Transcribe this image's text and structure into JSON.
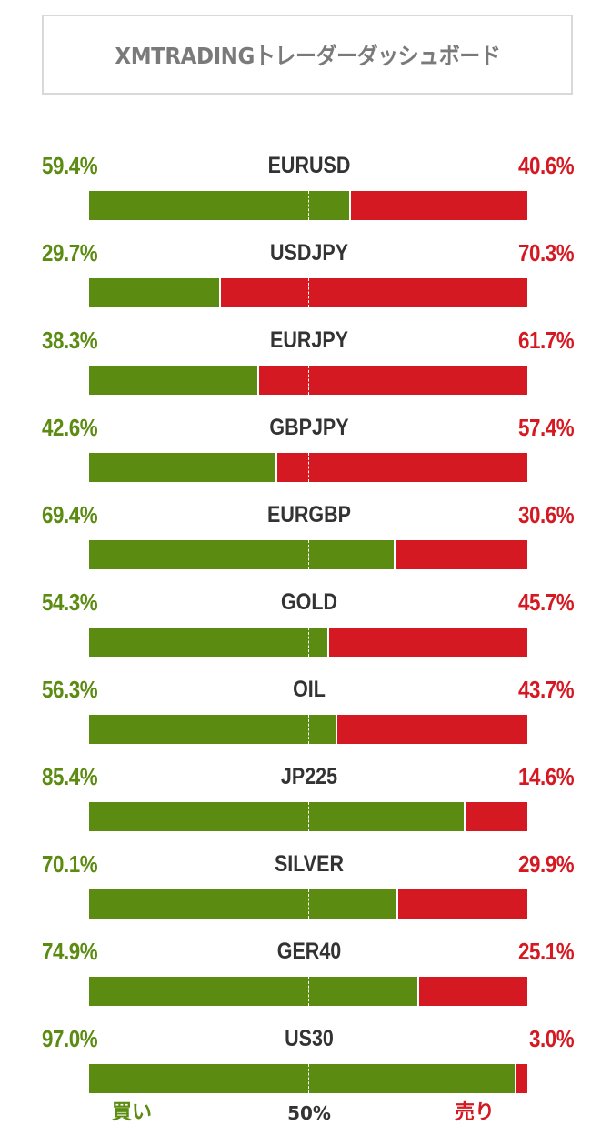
{
  "header": {
    "title": "XMTRADINGトレーダーダッシュボード"
  },
  "colors": {
    "buy": "#5b8c11",
    "sell": "#d51922",
    "text": "#333333",
    "title": "#7a7a7a"
  },
  "chart_data": {
    "type": "bar",
    "orientation": "horizontal-stacked",
    "categories": [
      "EURUSD",
      "USDJPY",
      "EURJPY",
      "GBPJPY",
      "EURGBP",
      "GOLD",
      "OIL",
      "JP225",
      "SILVER",
      "GER40",
      "US30"
    ],
    "series": [
      {
        "name": "買い",
        "values": [
          59.4,
          29.7,
          38.3,
          42.6,
          69.4,
          54.3,
          56.3,
          85.4,
          70.1,
          74.9,
          97.0
        ]
      },
      {
        "name": "売り",
        "values": [
          40.6,
          70.3,
          61.7,
          57.4,
          30.6,
          45.7,
          43.7,
          14.6,
          29.9,
          25.1,
          3.0
        ]
      }
    ],
    "labels": {
      "buy": [
        "59.4%",
        "29.7%",
        "38.3%",
        "42.6%",
        "69.4%",
        "54.3%",
        "56.3%",
        "85.4%",
        "70.1%",
        "74.9%",
        "97.0%"
      ],
      "sell": [
        "40.6%",
        "70.3%",
        "61.7%",
        "57.4%",
        "30.6%",
        "45.7%",
        "43.7%",
        "14.6%",
        "29.9%",
        "25.1%",
        "3.0%"
      ]
    },
    "xlim": [
      0,
      100
    ],
    "reference_line": 50
  },
  "footer": {
    "buy_label": "買い",
    "mid_label": "50%",
    "sell_label": "売り"
  }
}
